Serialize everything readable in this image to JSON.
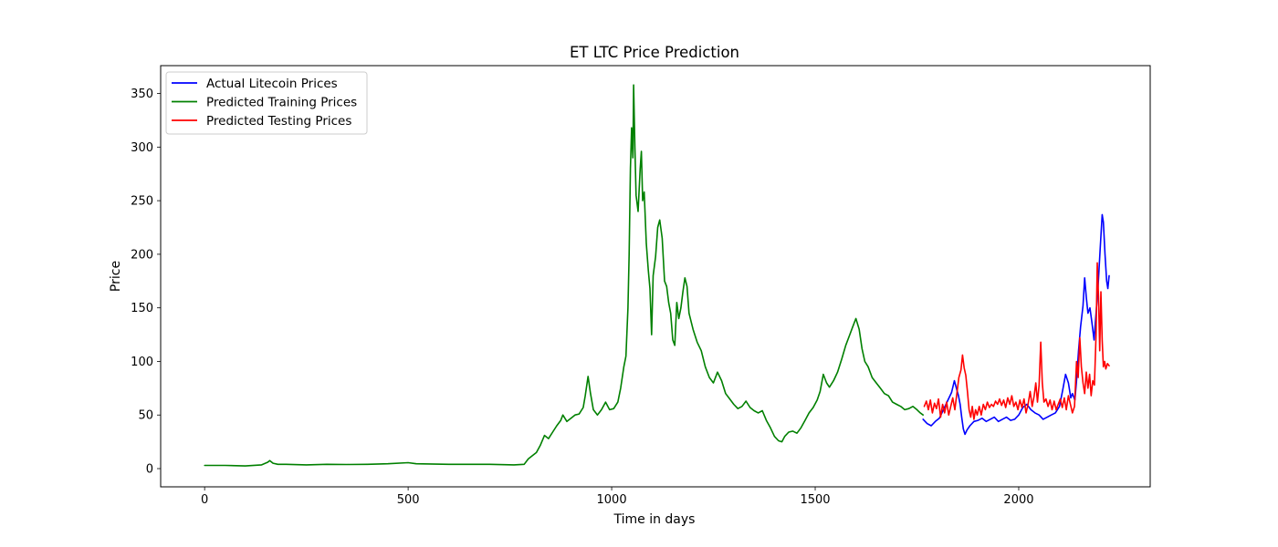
{
  "chart_data": {
    "type": "line",
    "title": "ET LTC Price Prediction",
    "xlabel": "Time in days",
    "ylabel": "Price",
    "xlim": [
      -108,
      2323
    ],
    "ylim": [
      -17,
      376
    ],
    "xticks": [
      0,
      500,
      1000,
      1500,
      2000
    ],
    "yticks": [
      0,
      50,
      100,
      150,
      200,
      250,
      300,
      350
    ],
    "grid": false,
    "legend_position": "top-left",
    "series": [
      {
        "name": "Actual Litecoin Prices",
        "color": "#0000ff",
        "points": [
          [
            1765,
            46
          ],
          [
            1775,
            42
          ],
          [
            1785,
            40
          ],
          [
            1795,
            44
          ],
          [
            1805,
            47
          ],
          [
            1815,
            55
          ],
          [
            1825,
            63
          ],
          [
            1835,
            71
          ],
          [
            1842,
            82
          ],
          [
            1847,
            75
          ],
          [
            1852,
            68
          ],
          [
            1856,
            60
          ],
          [
            1860,
            48
          ],
          [
            1864,
            37
          ],
          [
            1868,
            32
          ],
          [
            1873,
            36
          ],
          [
            1880,
            40
          ],
          [
            1890,
            44
          ],
          [
            1900,
            45
          ],
          [
            1910,
            47
          ],
          [
            1920,
            44
          ],
          [
            1930,
            46
          ],
          [
            1940,
            48
          ],
          [
            1950,
            44
          ],
          [
            1960,
            46
          ],
          [
            1970,
            48
          ],
          [
            1980,
            45
          ],
          [
            1990,
            46
          ],
          [
            2000,
            50
          ],
          [
            2010,
            57
          ],
          [
            2020,
            60
          ],
          [
            2030,
            55
          ],
          [
            2040,
            52
          ],
          [
            2050,
            50
          ],
          [
            2060,
            46
          ],
          [
            2070,
            48
          ],
          [
            2080,
            50
          ],
          [
            2090,
            52
          ],
          [
            2100,
            58
          ],
          [
            2108,
            73
          ],
          [
            2115,
            88
          ],
          [
            2122,
            80
          ],
          [
            2128,
            66
          ],
          [
            2132,
            70
          ],
          [
            2138,
            64
          ],
          [
            2142,
            82
          ],
          [
            2147,
            110
          ],
          [
            2152,
            132
          ],
          [
            2158,
            152
          ],
          [
            2162,
            178
          ],
          [
            2166,
            160
          ],
          [
            2170,
            145
          ],
          [
            2175,
            150
          ],
          [
            2180,
            136
          ],
          [
            2185,
            120
          ],
          [
            2190,
            145
          ],
          [
            2195,
            170
          ],
          [
            2200,
            205
          ],
          [
            2205,
            237
          ],
          [
            2208,
            230
          ],
          [
            2212,
            200
          ],
          [
            2216,
            175
          ],
          [
            2219,
            168
          ],
          [
            2222,
            180
          ]
        ]
      },
      {
        "name": "Predicted Training Prices",
        "color": "#008000",
        "points": [
          [
            0,
            3
          ],
          [
            50,
            3
          ],
          [
            100,
            2.5
          ],
          [
            140,
            3.5
          ],
          [
            155,
            6
          ],
          [
            160,
            7.5
          ],
          [
            168,
            5
          ],
          [
            180,
            4
          ],
          [
            200,
            4
          ],
          [
            250,
            3.5
          ],
          [
            300,
            4
          ],
          [
            350,
            3.8
          ],
          [
            400,
            4
          ],
          [
            450,
            4.5
          ],
          [
            500,
            5.5
          ],
          [
            520,
            4.5
          ],
          [
            600,
            4
          ],
          [
            700,
            4
          ],
          [
            760,
            3.5
          ],
          [
            785,
            4
          ],
          [
            795,
            9
          ],
          [
            805,
            12
          ],
          [
            815,
            15
          ],
          [
            825,
            22
          ],
          [
            835,
            31
          ],
          [
            845,
            28
          ],
          [
            855,
            34
          ],
          [
            865,
            40
          ],
          [
            875,
            45
          ],
          [
            880,
            50
          ],
          [
            890,
            44
          ],
          [
            900,
            47
          ],
          [
            910,
            50
          ],
          [
            920,
            51
          ],
          [
            930,
            57
          ],
          [
            935,
            68
          ],
          [
            942,
            86
          ],
          [
            948,
            70
          ],
          [
            955,
            55
          ],
          [
            965,
            50
          ],
          [
            975,
            55
          ],
          [
            985,
            62
          ],
          [
            995,
            55
          ],
          [
            1005,
            56
          ],
          [
            1015,
            62
          ],
          [
            1022,
            75
          ],
          [
            1030,
            95
          ],
          [
            1035,
            105
          ],
          [
            1040,
            150
          ],
          [
            1043,
            200
          ],
          [
            1046,
            280
          ],
          [
            1049,
            318
          ],
          [
            1052,
            290
          ],
          [
            1054,
            358
          ],
          [
            1057,
            300
          ],
          [
            1060,
            255
          ],
          [
            1065,
            240
          ],
          [
            1070,
            280
          ],
          [
            1073,
            296
          ],
          [
            1076,
            250
          ],
          [
            1080,
            258
          ],
          [
            1085,
            210
          ],
          [
            1090,
            185
          ],
          [
            1094,
            168
          ],
          [
            1098,
            125
          ],
          [
            1102,
            180
          ],
          [
            1108,
            198
          ],
          [
            1113,
            225
          ],
          [
            1118,
            232
          ],
          [
            1124,
            215
          ],
          [
            1130,
            175
          ],
          [
            1135,
            170
          ],
          [
            1140,
            155
          ],
          [
            1145,
            145
          ],
          [
            1150,
            120
          ],
          [
            1155,
            115
          ],
          [
            1160,
            155
          ],
          [
            1165,
            140
          ],
          [
            1170,
            150
          ],
          [
            1175,
            165
          ],
          [
            1180,
            178
          ],
          [
            1185,
            170
          ],
          [
            1190,
            145
          ],
          [
            1200,
            130
          ],
          [
            1210,
            118
          ],
          [
            1220,
            110
          ],
          [
            1230,
            95
          ],
          [
            1240,
            85
          ],
          [
            1250,
            80
          ],
          [
            1260,
            90
          ],
          [
            1270,
            82
          ],
          [
            1280,
            70
          ],
          [
            1290,
            65
          ],
          [
            1300,
            60
          ],
          [
            1310,
            56
          ],
          [
            1320,
            58
          ],
          [
            1330,
            63
          ],
          [
            1340,
            57
          ],
          [
            1350,
            54
          ],
          [
            1360,
            52
          ],
          [
            1370,
            54
          ],
          [
            1380,
            45
          ],
          [
            1390,
            38
          ],
          [
            1400,
            30
          ],
          [
            1410,
            26
          ],
          [
            1418,
            25
          ],
          [
            1425,
            30
          ],
          [
            1435,
            34
          ],
          [
            1445,
            35
          ],
          [
            1455,
            33
          ],
          [
            1465,
            38
          ],
          [
            1475,
            45
          ],
          [
            1485,
            52
          ],
          [
            1495,
            57
          ],
          [
            1505,
            64
          ],
          [
            1512,
            72
          ],
          [
            1520,
            88
          ],
          [
            1528,
            80
          ],
          [
            1535,
            76
          ],
          [
            1545,
            82
          ],
          [
            1555,
            90
          ],
          [
            1565,
            102
          ],
          [
            1575,
            115
          ],
          [
            1585,
            125
          ],
          [
            1592,
            132
          ],
          [
            1600,
            140
          ],
          [
            1608,
            130
          ],
          [
            1615,
            112
          ],
          [
            1622,
            100
          ],
          [
            1630,
            95
          ],
          [
            1640,
            85
          ],
          [
            1650,
            80
          ],
          [
            1660,
            75
          ],
          [
            1670,
            70
          ],
          [
            1680,
            68
          ],
          [
            1690,
            62
          ],
          [
            1700,
            60
          ],
          [
            1710,
            58
          ],
          [
            1720,
            55
          ],
          [
            1730,
            56
          ],
          [
            1740,
            58
          ],
          [
            1750,
            55
          ],
          [
            1758,
            52
          ],
          [
            1765,
            50
          ]
        ]
      },
      {
        "name": "Predicted Testing Prices",
        "color": "#ff0000",
        "points": [
          [
            1768,
            58
          ],
          [
            1773,
            63
          ],
          [
            1778,
            55
          ],
          [
            1783,
            64
          ],
          [
            1788,
            52
          ],
          [
            1793,
            61
          ],
          [
            1798,
            56
          ],
          [
            1803,
            65
          ],
          [
            1808,
            48
          ],
          [
            1813,
            60
          ],
          [
            1818,
            52
          ],
          [
            1823,
            62
          ],
          [
            1828,
            50
          ],
          [
            1833,
            58
          ],
          [
            1838,
            66
          ],
          [
            1843,
            55
          ],
          [
            1848,
            70
          ],
          [
            1853,
            85
          ],
          [
            1858,
            92
          ],
          [
            1862,
            106
          ],
          [
            1866,
            94
          ],
          [
            1870,
            87
          ],
          [
            1874,
            72
          ],
          [
            1878,
            55
          ],
          [
            1882,
            48
          ],
          [
            1886,
            58
          ],
          [
            1890,
            46
          ],
          [
            1894,
            55
          ],
          [
            1898,
            50
          ],
          [
            1903,
            58
          ],
          [
            1908,
            50
          ],
          [
            1913,
            60
          ],
          [
            1918,
            55
          ],
          [
            1923,
            62
          ],
          [
            1928,
            57
          ],
          [
            1933,
            60
          ],
          [
            1938,
            58
          ],
          [
            1943,
            63
          ],
          [
            1948,
            60
          ],
          [
            1953,
            65
          ],
          [
            1958,
            59
          ],
          [
            1963,
            64
          ],
          [
            1968,
            57
          ],
          [
            1973,
            66
          ],
          [
            1978,
            60
          ],
          [
            1983,
            68
          ],
          [
            1988,
            58
          ],
          [
            1993,
            62
          ],
          [
            1998,
            55
          ],
          [
            2003,
            64
          ],
          [
            2008,
            57
          ],
          [
            2013,
            65
          ],
          [
            2018,
            52
          ],
          [
            2023,
            60
          ],
          [
            2028,
            72
          ],
          [
            2033,
            58
          ],
          [
            2038,
            68
          ],
          [
            2042,
            80
          ],
          [
            2046,
            62
          ],
          [
            2050,
            78
          ],
          [
            2054,
            118
          ],
          [
            2058,
            80
          ],
          [
            2062,
            62
          ],
          [
            2067,
            65
          ],
          [
            2072,
            58
          ],
          [
            2077,
            64
          ],
          [
            2082,
            55
          ],
          [
            2087,
            63
          ],
          [
            2092,
            55
          ],
          [
            2097,
            60
          ],
          [
            2102,
            65
          ],
          [
            2107,
            57
          ],
          [
            2112,
            66
          ],
          [
            2117,
            55
          ],
          [
            2122,
            68
          ],
          [
            2127,
            60
          ],
          [
            2132,
            52
          ],
          [
            2137,
            58
          ],
          [
            2142,
            100
          ],
          [
            2146,
            85
          ],
          [
            2150,
            122
          ],
          [
            2154,
            95
          ],
          [
            2158,
            80
          ],
          [
            2162,
            70
          ],
          [
            2166,
            90
          ],
          [
            2170,
            75
          ],
          [
            2174,
            88
          ],
          [
            2178,
            68
          ],
          [
            2182,
            82
          ],
          [
            2186,
            78
          ],
          [
            2190,
            125
          ],
          [
            2193,
            192
          ],
          [
            2196,
            160
          ],
          [
            2199,
            110
          ],
          [
            2202,
            165
          ],
          [
            2205,
            120
          ],
          [
            2208,
            95
          ],
          [
            2211,
            100
          ],
          [
            2214,
            93
          ],
          [
            2218,
            98
          ],
          [
            2222,
            96
          ]
        ]
      }
    ]
  }
}
